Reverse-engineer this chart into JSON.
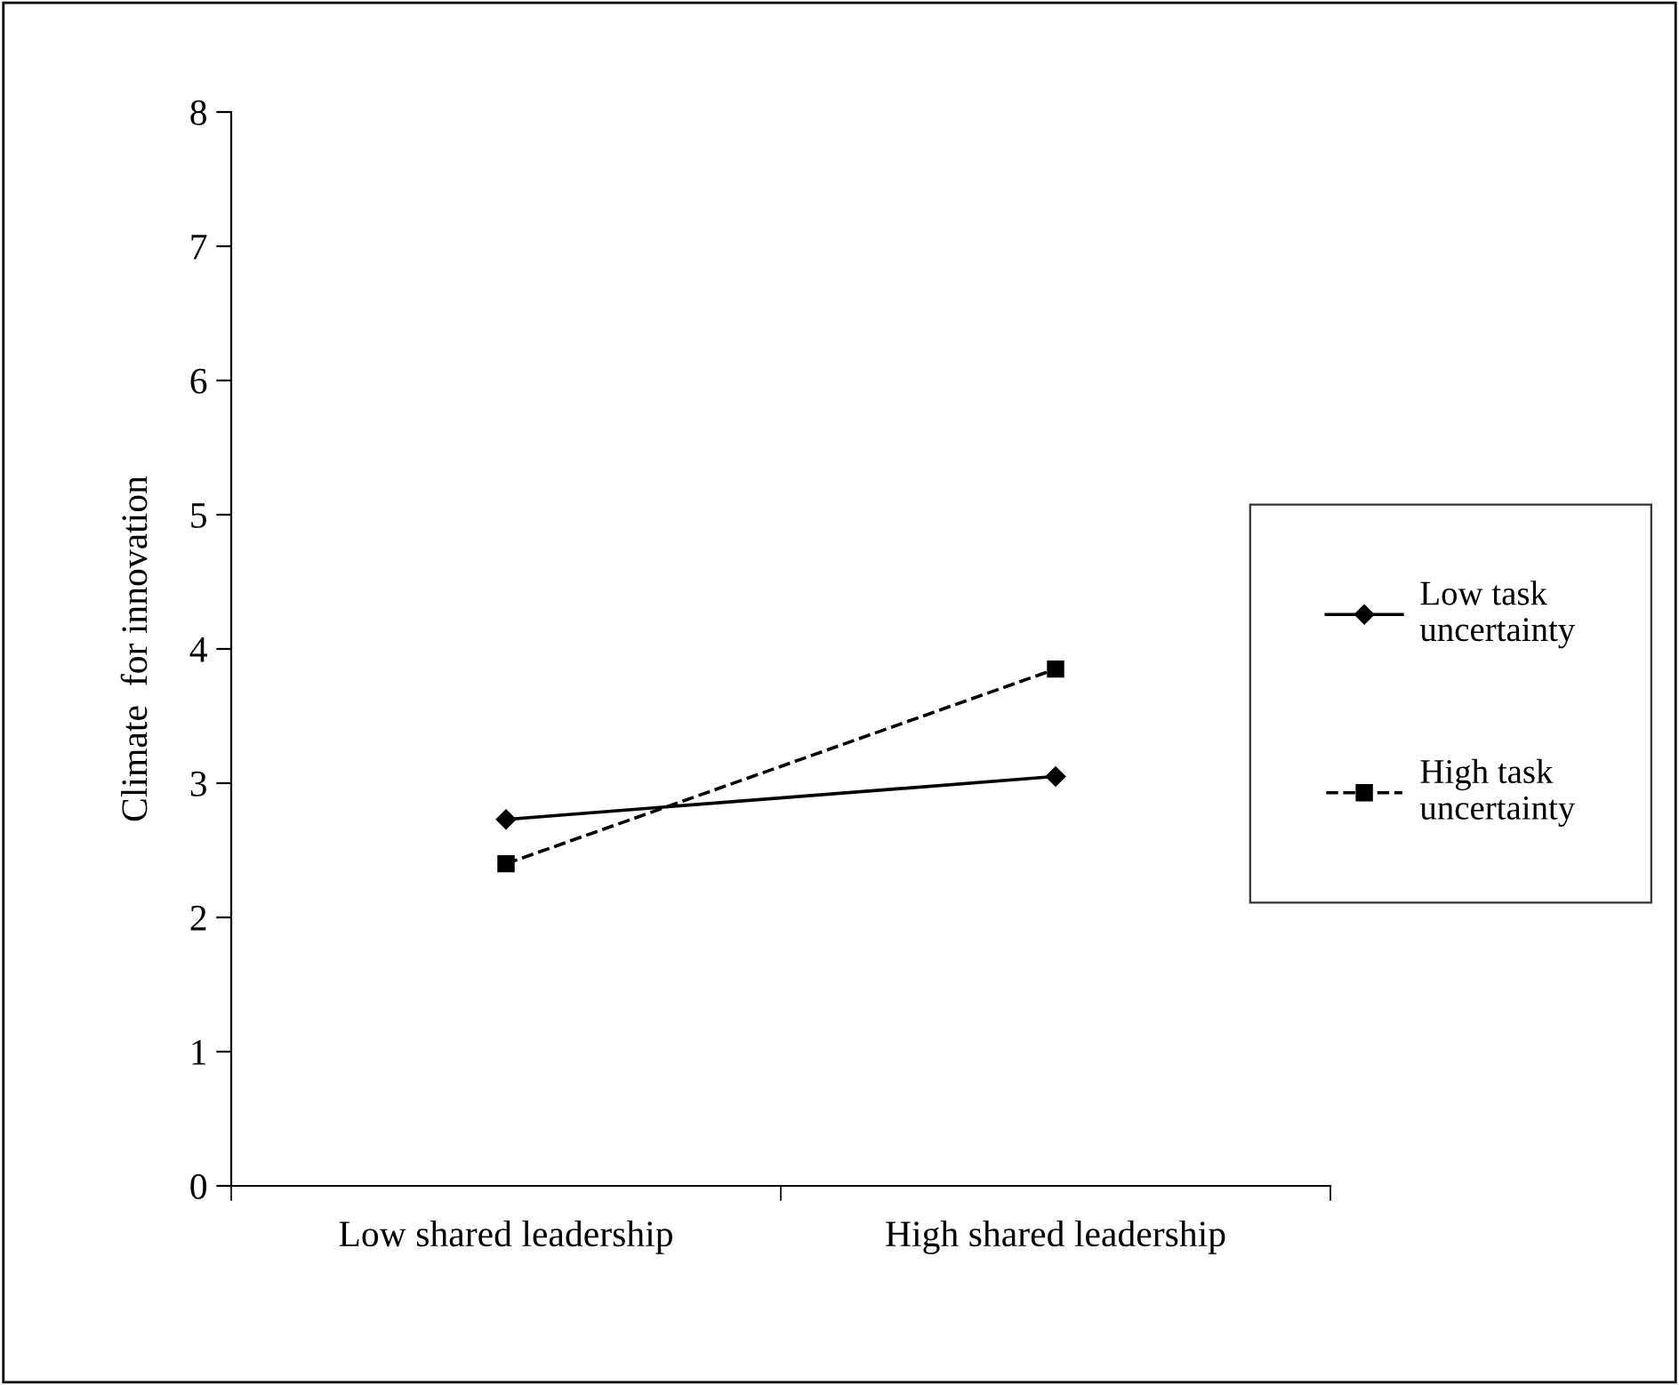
{
  "chart_data": {
    "type": "line",
    "ylabel": "Climate  for innovation",
    "categories": [
      "Low shared leadership",
      "High shared leadership"
    ],
    "series": [
      {
        "name": "Low task\nuncertainty",
        "color": "#000000",
        "values": [
          2.73,
          3.05
        ],
        "marker": "diamond",
        "line_style": "solid"
      },
      {
        "name": "High task\nuncertainty",
        "color": "#000000",
        "values": [
          2.4,
          3.85
        ],
        "marker": "square",
        "line_style": "dashed"
      }
    ],
    "ylim": [
      0,
      8
    ],
    "yticks": [
      0,
      1,
      2,
      3,
      4,
      5,
      6,
      7,
      8
    ],
    "grid": false,
    "legend": "right"
  }
}
